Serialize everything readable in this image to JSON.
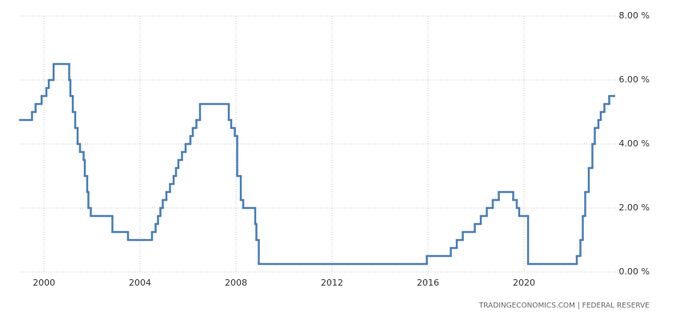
{
  "chart_data": {
    "type": "step",
    "source": "TRADINGECONOMICS.COM  |  FEDERAL RESERVE",
    "x": [
      1999.0,
      1999.5,
      1999.65,
      1999.9,
      2000.1,
      2000.2,
      2000.4,
      2001.05,
      2001.1,
      2001.2,
      2001.3,
      2001.4,
      2001.5,
      2001.65,
      2001.7,
      2001.8,
      2001.85,
      2001.95,
      2002.85,
      2003.5,
      2004.5,
      2004.65,
      2004.75,
      2004.85,
      2004.95,
      2005.1,
      2005.25,
      2005.4,
      2005.5,
      2005.6,
      2005.75,
      2005.9,
      2006.1,
      2006.2,
      2006.35,
      2006.5,
      2007.7,
      2007.8,
      2007.95,
      2008.05,
      2008.2,
      2008.3,
      2008.8,
      2008.85,
      2008.95,
      2015.95,
      2016.95,
      2017.2,
      2017.45,
      2017.95,
      2018.2,
      2018.45,
      2018.7,
      2018.95,
      2019.55,
      2019.7,
      2019.8,
      2020.17,
      2022.2,
      2022.35,
      2022.45,
      2022.55,
      2022.7,
      2022.85,
      2022.95,
      2023.1,
      2023.2,
      2023.35,
      2023.55,
      2023.75
    ],
    "values": [
      4.75,
      5.0,
      5.25,
      5.5,
      5.75,
      6.0,
      6.5,
      6.0,
      5.5,
      5.0,
      4.5,
      4.0,
      3.75,
      3.5,
      3.0,
      2.5,
      2.0,
      1.75,
      1.25,
      1.0,
      1.25,
      1.5,
      1.75,
      2.0,
      2.25,
      2.5,
      2.75,
      3.0,
      3.25,
      3.5,
      3.75,
      4.0,
      4.25,
      4.5,
      4.75,
      5.25,
      4.75,
      4.5,
      4.25,
      3.0,
      2.25,
      2.0,
      1.5,
      1.0,
      0.25,
      0.5,
      0.75,
      1.0,
      1.25,
      1.5,
      1.75,
      2.0,
      2.25,
      2.5,
      2.25,
      2.0,
      1.75,
      0.25,
      0.5,
      1.0,
      1.75,
      2.5,
      3.25,
      4.0,
      4.5,
      4.75,
      5.0,
      5.25,
      5.5,
      5.5
    ],
    "color": "#4a7eb4",
    "xlim": [
      1999,
      2024
    ],
    "ylim": [
      0,
      8
    ],
    "xticks": [
      2000,
      2004,
      2008,
      2012,
      2016,
      2020
    ],
    "yticks": [
      {
        "value": 0,
        "label": "0.00 %"
      },
      {
        "value": 2,
        "label": "2.00 %"
      },
      {
        "value": 4,
        "label": "4.00 %"
      },
      {
        "value": 6,
        "label": "6.00 %"
      },
      {
        "value": 8,
        "label": "8.00 %"
      }
    ],
    "grid": true
  }
}
